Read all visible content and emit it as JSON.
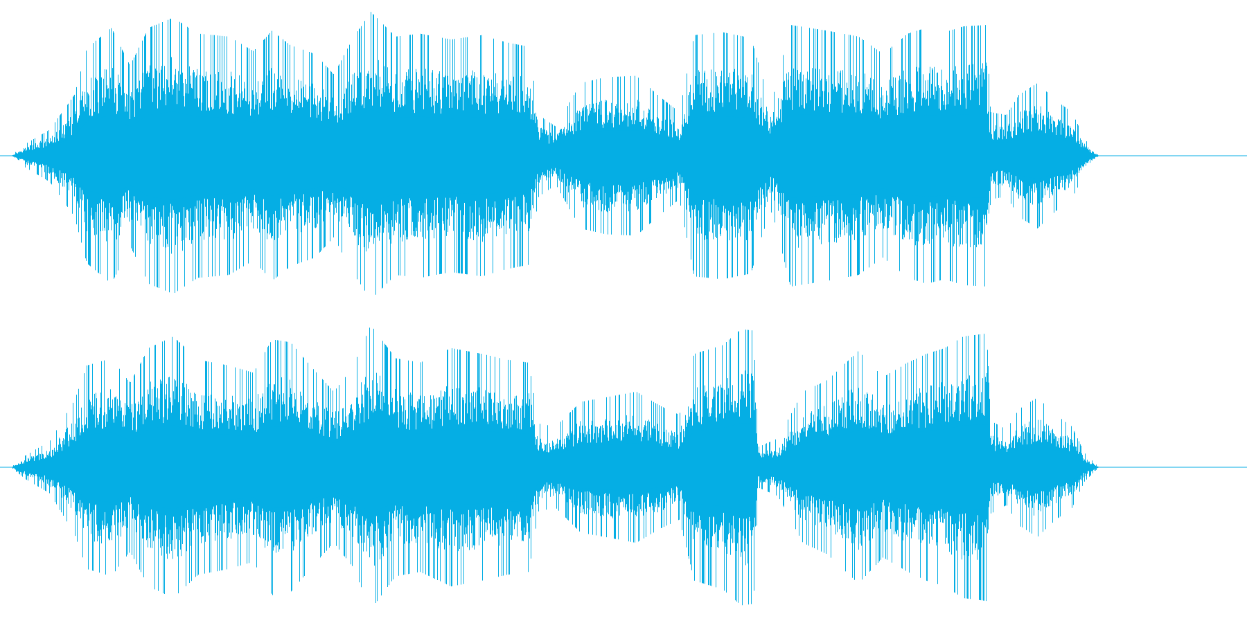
{
  "waveform": {
    "color": "#05aee4",
    "background": "#ffffff",
    "channels": [
      {
        "name": "",
        "envelope": [
          [
            0.0,
            0.01
          ],
          [
            0.01,
            0.08
          ],
          [
            0.03,
            0.18
          ],
          [
            0.05,
            0.42
          ],
          [
            0.06,
            0.74
          ],
          [
            0.08,
            0.88
          ],
          [
            0.095,
            0.62
          ],
          [
            0.11,
            0.88
          ],
          [
            0.13,
            0.95
          ],
          [
            0.15,
            0.84
          ],
          [
            0.175,
            0.82
          ],
          [
            0.195,
            0.72
          ],
          [
            0.21,
            0.86
          ],
          [
            0.225,
            0.76
          ],
          [
            0.245,
            0.7
          ],
          [
            0.26,
            0.56
          ],
          [
            0.275,
            0.8
          ],
          [
            0.29,
            0.99
          ],
          [
            0.31,
            0.82
          ],
          [
            0.33,
            0.84
          ],
          [
            0.355,
            0.8
          ],
          [
            0.38,
            0.83
          ],
          [
            0.4,
            0.78
          ],
          [
            0.418,
            0.75
          ],
          [
            0.426,
            0.28
          ],
          [
            0.44,
            0.2
          ],
          [
            0.46,
            0.5
          ],
          [
            0.48,
            0.54
          ],
          [
            0.505,
            0.55
          ],
          [
            0.525,
            0.4
          ],
          [
            0.54,
            0.3
          ],
          [
            0.552,
            0.83
          ],
          [
            0.575,
            0.85
          ],
          [
            0.598,
            0.81
          ],
          [
            0.608,
            0.52
          ],
          [
            0.615,
            0.38
          ],
          [
            0.63,
            0.9
          ],
          [
            0.66,
            0.86
          ],
          [
            0.685,
            0.82
          ],
          [
            0.705,
            0.7
          ],
          [
            0.725,
            0.84
          ],
          [
            0.74,
            0.88
          ],
          [
            0.755,
            0.85
          ],
          [
            0.77,
            0.89
          ],
          [
            0.789,
            0.9
          ],
          [
            0.792,
            0.3
          ],
          [
            0.805,
            0.28
          ],
          [
            0.815,
            0.42
          ],
          [
            0.83,
            0.5
          ],
          [
            0.845,
            0.38
          ],
          [
            0.858,
            0.3
          ],
          [
            0.868,
            0.12
          ],
          [
            0.875,
            0.04
          ],
          [
            0.88,
            0.0
          ],
          [
            1.0,
            0.0
          ]
        ]
      },
      {
        "name": "",
        "envelope": [
          [
            0.0,
            0.01
          ],
          [
            0.01,
            0.08
          ],
          [
            0.03,
            0.18
          ],
          [
            0.05,
            0.46
          ],
          [
            0.06,
            0.7
          ],
          [
            0.08,
            0.75
          ],
          [
            0.095,
            0.58
          ],
          [
            0.11,
            0.82
          ],
          [
            0.13,
            0.9
          ],
          [
            0.15,
            0.74
          ],
          [
            0.175,
            0.7
          ],
          [
            0.195,
            0.65
          ],
          [
            0.21,
            0.88
          ],
          [
            0.225,
            0.86
          ],
          [
            0.245,
            0.66
          ],
          [
            0.26,
            0.52
          ],
          [
            0.275,
            0.68
          ],
          [
            0.29,
            0.98
          ],
          [
            0.31,
            0.75
          ],
          [
            0.33,
            0.72
          ],
          [
            0.355,
            0.82
          ],
          [
            0.38,
            0.78
          ],
          [
            0.4,
            0.74
          ],
          [
            0.418,
            0.72
          ],
          [
            0.426,
            0.3
          ],
          [
            0.44,
            0.28
          ],
          [
            0.46,
            0.45
          ],
          [
            0.48,
            0.48
          ],
          [
            0.505,
            0.52
          ],
          [
            0.525,
            0.42
          ],
          [
            0.54,
            0.36
          ],
          [
            0.552,
            0.78
          ],
          [
            0.575,
            0.84
          ],
          [
            0.59,
            0.95
          ],
          [
            0.6,
            0.94
          ],
          [
            0.604,
            0.14
          ],
          [
            0.62,
            0.2
          ],
          [
            0.64,
            0.52
          ],
          [
            0.66,
            0.6
          ],
          [
            0.685,
            0.8
          ],
          [
            0.705,
            0.62
          ],
          [
            0.725,
            0.72
          ],
          [
            0.74,
            0.78
          ],
          [
            0.755,
            0.82
          ],
          [
            0.77,
            0.9
          ],
          [
            0.789,
            0.92
          ],
          [
            0.792,
            0.32
          ],
          [
            0.805,
            0.26
          ],
          [
            0.815,
            0.4
          ],
          [
            0.83,
            0.48
          ],
          [
            0.845,
            0.36
          ],
          [
            0.858,
            0.28
          ],
          [
            0.868,
            0.1
          ],
          [
            0.875,
            0.04
          ],
          [
            0.88,
            0.0
          ],
          [
            1.0,
            0.0
          ]
        ]
      }
    ]
  }
}
